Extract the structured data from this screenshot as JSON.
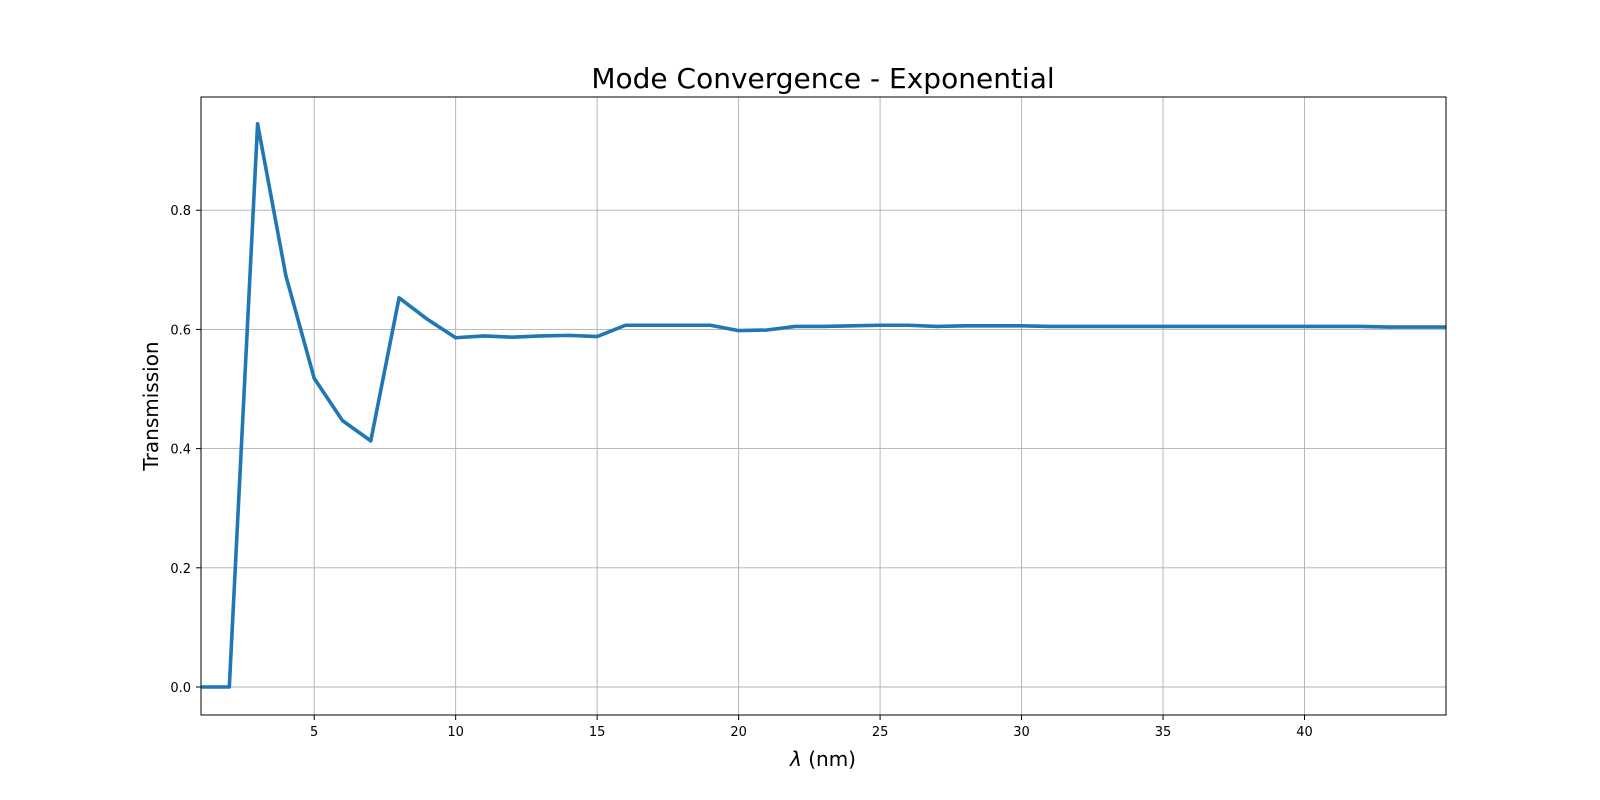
{
  "chart_data": {
    "type": "line",
    "title": "Mode Convergence - Exponential",
    "xlabel_symbol": "λ",
    "xlabel_unit": " (nm)",
    "ylabel": "Transmission",
    "xlim": [
      1,
      45
    ],
    "ylim": [
      -0.047,
      0.99
    ],
    "xticks": [
      5,
      10,
      15,
      20,
      25,
      30,
      35,
      40
    ],
    "yticks": [
      0.0,
      0.2,
      0.4,
      0.6,
      0.8
    ],
    "ytick_labels": [
      "0.0",
      "0.2",
      "0.4",
      "0.6",
      "0.8"
    ],
    "grid": true,
    "line_color": "#1f77b4",
    "series": [
      {
        "x": [
          1,
          2,
          3,
          4,
          5,
          6,
          7,
          8,
          9,
          10,
          11,
          12,
          13,
          14,
          15,
          16,
          17,
          18,
          19,
          20,
          21,
          22,
          23,
          24,
          25,
          26,
          27,
          28,
          29,
          30,
          31,
          32,
          33,
          34,
          35,
          36,
          37,
          38,
          39,
          40,
          41,
          42,
          43,
          44,
          45
        ],
        "values": [
          0.0,
          0.0,
          0.945,
          0.69,
          0.518,
          0.447,
          0.413,
          0.653,
          0.617,
          0.586,
          0.589,
          0.587,
          0.589,
          0.59,
          0.588,
          0.607,
          0.607,
          0.607,
          0.607,
          0.598,
          0.599,
          0.605,
          0.605,
          0.606,
          0.607,
          0.607,
          0.605,
          0.606,
          0.606,
          0.606,
          0.605,
          0.605,
          0.605,
          0.605,
          0.605,
          0.605,
          0.605,
          0.605,
          0.605,
          0.605,
          0.605,
          0.605,
          0.604,
          0.604,
          0.604
        ]
      }
    ]
  }
}
